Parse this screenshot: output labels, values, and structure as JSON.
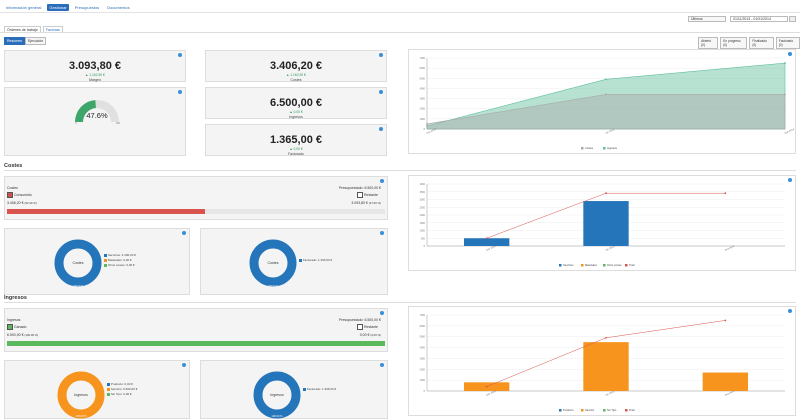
{
  "nav": {
    "tabs": [
      {
        "label": "Información general"
      },
      {
        "label": "Gestionar"
      },
      {
        "label": "Presupuestos"
      },
      {
        "label": "Documentos"
      }
    ]
  },
  "toolbar": {
    "period_value": "Últimos",
    "date_range": "01/11/2013 - 01/01/2014"
  },
  "subtabs": [
    {
      "label": "Órdenes de trabajo"
    },
    {
      "label": "Facturas"
    }
  ],
  "view_toggle": [
    {
      "label": "Resumen"
    },
    {
      "label": "Ejecución"
    }
  ],
  "filters": [
    {
      "label": "Abierto (0)"
    },
    {
      "label": "En progreso (0)"
    },
    {
      "label": "Finalizado (0)"
    },
    {
      "label": "Facturado (0)"
    }
  ],
  "summary": {
    "margin": {
      "value": "3.093,80 €",
      "delta": "▲ 1.162,90 €",
      "label": "Margen"
    },
    "costs": {
      "value": "3.406,20 €",
      "delta": "▲ 1.162,90 €",
      "label": "Costes"
    },
    "income": {
      "value": "6.500,00 €",
      "delta": "▲ 0,00 €",
      "label": "Ingresos"
    },
    "invoiced": {
      "value": "1.365,00 €",
      "delta": "▲ 0,00 €",
      "label": "Facturado"
    },
    "gauge": {
      "value_text": "47.6%",
      "fraction": 0.476,
      "min": "0",
      "max": "100"
    }
  },
  "costs_section": {
    "title": "Costes",
    "card_label": "Costes",
    "budget_label": "Presupuestado: 6.500,00 €",
    "consumed_label": "Consumido",
    "consumed_amount": "3.406,20 €",
    "consumed_pct": "(52.40 %)",
    "remaining_label": "Restante",
    "remaining_amount": "3.093,80 €",
    "remaining_pct": "(47.60 %)",
    "fill": 0.524,
    "donut1": {
      "center": "Costes",
      "total": "100,00 %",
      "legend": [
        "Servicios: 3.406,20 €",
        "Materiales: 0,00 €",
        "Otros costes: 0,00 €"
      ]
    },
    "donut2": {
      "center": "Costes",
      "total": "100,00 %",
      "legend": [
        "Facturado: 1.365,00 €"
      ]
    }
  },
  "income_section": {
    "title": "Ingresos",
    "card_label": "Ingresos",
    "budget_label": "Presupuestado: 6.500,00 €",
    "earned_label": "Ganado",
    "earned_amount": "6.500,00 €",
    "earned_pct": "(100.00 %)",
    "remaining_label": "Restante",
    "remaining_amount": "0,00 €",
    "remaining_pct": "(0.00 %)",
    "fill": 1.0,
    "donut1": {
      "center": "Ingresos",
      "total": "100,00 %",
      "legend": [
        "Producto: 0,00 €",
        "Servicio: 6.500,00 €",
        "Sin Tipo: 0,00 €"
      ]
    },
    "donut2": {
      "center": "Ingresos",
      "total": "100,00 %",
      "legend": [
        "Facturado: 1.365,00 €"
      ]
    }
  },
  "colors": {
    "primary": "#2a6ebb",
    "red": "#d9534f",
    "green": "#5cb85c",
    "blue": "#2475b9",
    "orange": "#f7941d",
    "teal": "#5fbf9c",
    "gray": "#a9a9a9"
  },
  "chart_data": [
    {
      "type": "area",
      "x": [
        "Nov 2013",
        "Dic 2013",
        "Ene 2014"
      ],
      "series": [
        {
          "name": "Costes",
          "values": [
            500,
            3406,
            3406
          ]
        },
        {
          "name": "Ingresos",
          "values": [
            300,
            4900,
            6500
          ]
        }
      ],
      "ylim": [
        0,
        7000
      ],
      "yticks": [
        "0",
        "1000",
        "2000",
        "3000",
        "4000",
        "5000",
        "6000",
        "7000"
      ],
      "legend": "bottom"
    },
    {
      "type": "bar",
      "categories": [
        "Nov 2013",
        "Dic 2013",
        "Ene 2014"
      ],
      "series": [
        {
          "name": "Servicios",
          "values": [
            500,
            2900,
            0
          ]
        },
        {
          "name": "Materiales",
          "values": [
            0,
            0,
            0
          ]
        },
        {
          "name": "Otros costes",
          "values": [
            0,
            0,
            0
          ]
        },
        {
          "name": "Total",
          "values": [
            500,
            3406,
            3406
          ]
        }
      ],
      "ylim": [
        0,
        4000
      ],
      "yticks": [
        "0",
        "500",
        "1000",
        "1500",
        "2000",
        "2500",
        "3000",
        "3500",
        "4000"
      ],
      "legend": "bottom"
    },
    {
      "type": "bar",
      "categories": [
        "Nov 2013",
        "Dic 2013",
        "Ene 2014"
      ],
      "series": [
        {
          "name": "Producto",
          "values": [
            0,
            0,
            0
          ]
        },
        {
          "name": "Servicio",
          "values": [
            800,
            4500,
            1700
          ]
        },
        {
          "name": "Sin Tipo",
          "values": [
            0,
            0,
            0
          ]
        },
        {
          "name": "Total",
          "values": [
            400,
            4900,
            6500
          ]
        }
      ],
      "ylim": [
        0,
        7000
      ],
      "yticks": [
        "0",
        "1000",
        "2000",
        "3000",
        "4000",
        "5000",
        "6000",
        "7000"
      ],
      "legend": "bottom"
    }
  ]
}
